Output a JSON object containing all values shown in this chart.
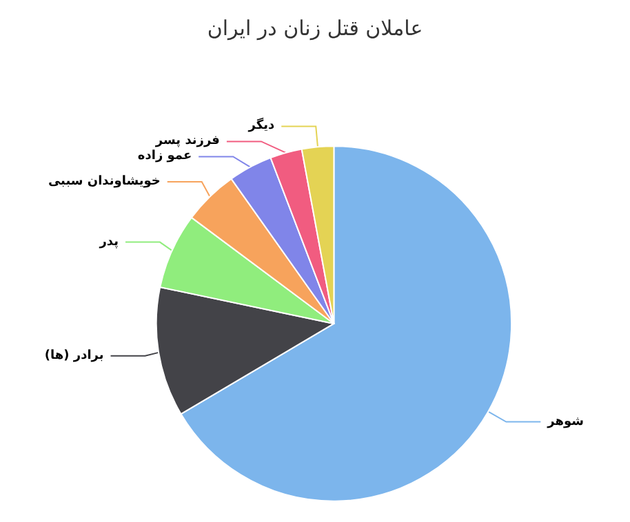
{
  "chart_data": {
    "type": "pie",
    "title": "عاملان قتل زنان در ایران",
    "categories": [
      "شوهر",
      "برادر (ها)",
      "پدر",
      "خویشاوندان سببی",
      "عمو زاده",
      "فرزند پسر",
      "دیگر"
    ],
    "values": [
      66.5,
      11.8,
      6.9,
      5.0,
      4.0,
      2.9,
      2.9
    ],
    "colors": [
      "#7cb5ec",
      "#434348",
      "#90ed7d",
      "#f7a35c",
      "#8085e9",
      "#f15c80",
      "#e4d354"
    ]
  }
}
